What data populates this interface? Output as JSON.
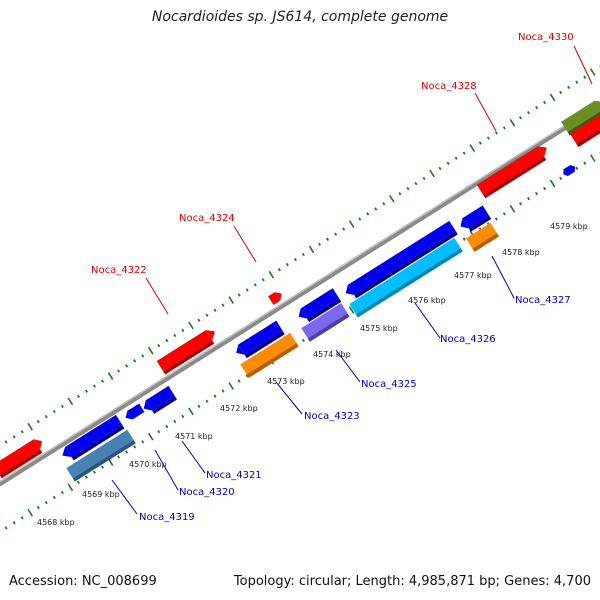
{
  "title": "Nocardioides sp. JS614, complete genome",
  "footer": {
    "accession": "Accession: NC_008699",
    "summary": "Topology: circular; Length: 4,985,871 bp; Genes: 4,700"
  },
  "colors": {
    "backbone": "#808080",
    "ticks": "#1a7a1a",
    "forward_label": "#dd0000",
    "reverse_label": "#0000bb"
  },
  "ticks": [
    "4568 kbp",
    "4569 kbp",
    "4570 kbp",
    "4571 kbp",
    "4572 kbp",
    "4573 kbp",
    "4574 kbp",
    "4575 kbp",
    "4576 kbp",
    "4577 kbp",
    "4578 kbp",
    "4579 kbp"
  ],
  "gene_labels": {
    "forward": [
      "Noca_4322",
      "Noca_4324",
      "Noca_4328",
      "Noca_4330"
    ],
    "reverse": [
      "Noca_4319",
      "Noca_4320",
      "Noca_4321",
      "Noca_4323",
      "Noca_4325",
      "Noca_4326",
      "Noca_4327"
    ]
  }
}
